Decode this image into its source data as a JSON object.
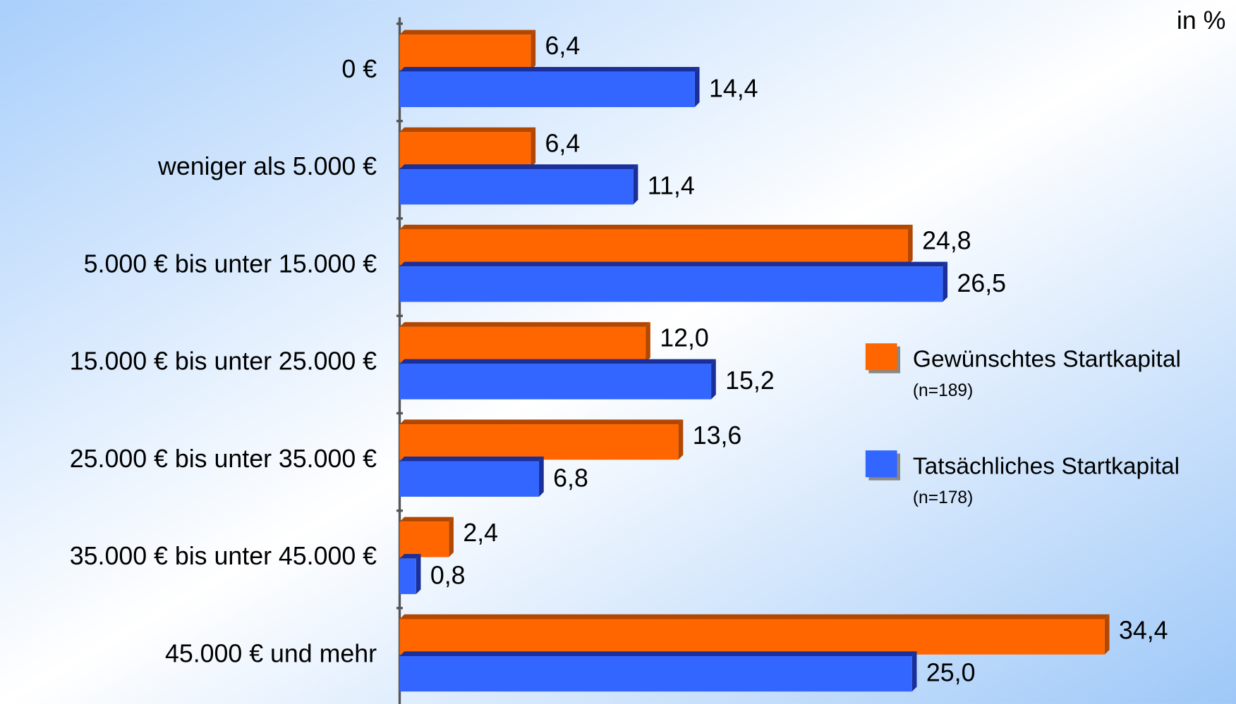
{
  "chart_data": {
    "type": "bar",
    "orientation": "horizontal",
    "unit_label": "in %",
    "categories": [
      "0 €",
      "weniger als 5.000 €",
      "5.000 € bis unter 15.000 €",
      "15.000 € bis unter 25.000 €",
      "25.000 € bis unter 35.000 €",
      "35.000 € bis unter 45.000 €",
      "45.000 € und mehr"
    ],
    "series": [
      {
        "name": "Gewünschtes Startkapital",
        "note": "(n=189)",
        "color": "#ff6600",
        "values": [
          6.4,
          6.4,
          24.8,
          12.0,
          13.6,
          2.4,
          34.4
        ],
        "value_labels": [
          "6,4",
          "6,4",
          "24,8",
          "12,0",
          "13,6",
          "2,4",
          "34,4"
        ]
      },
      {
        "name": "Tatsächliches Startkapital",
        "note": "(n=178)",
        "color": "#3366ff",
        "values": [
          14.4,
          11.4,
          26.5,
          15.2,
          6.8,
          0.8,
          25.0
        ],
        "value_labels": [
          "14,4",
          "11,4",
          "26,5",
          "15,2",
          "6,8",
          "0,8",
          "25,0"
        ]
      }
    ]
  }
}
